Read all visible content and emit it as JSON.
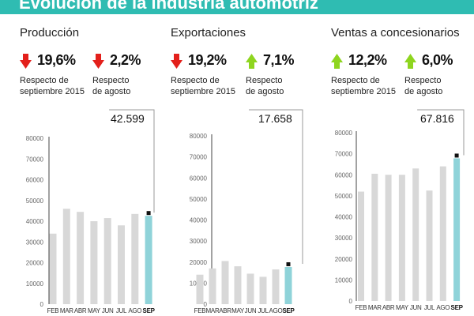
{
  "header": {
    "title": "Evolución de la industria automotriz"
  },
  "colors": {
    "accent": "#2fbcb2",
    "bar": "#d8d8d8",
    "bar_highlight": "#8fd3d9",
    "arrow_down": "#e3201b",
    "arrow_up": "#8ed51f"
  },
  "panels": [
    {
      "title": "Producción",
      "stats": [
        {
          "value": "19,6%",
          "direction": "down",
          "caption_1": "Respecto de",
          "caption_2": "septiembre 2015"
        },
        {
          "value": "2,2%",
          "direction": "down",
          "caption_1": "Respecto",
          "caption_2": "de agosto"
        }
      ],
      "callout": "42.599"
    },
    {
      "title": "Exportaciones",
      "stats": [
        {
          "value": "19,2%",
          "direction": "down",
          "caption_1": "Respecto de",
          "caption_2": "septiembre 2015"
        },
        {
          "value": "7,1%",
          "direction": "up",
          "caption_1": "Respecto",
          "caption_2": "de agosto"
        }
      ],
      "callout": "17.658"
    },
    {
      "title": "Ventas a concesionarios",
      "stats": [
        {
          "value": "12,2%",
          "direction": "up",
          "caption_1": "Respecto de",
          "caption_2": "septiembre 2015"
        },
        {
          "value": "6,0%",
          "direction": "up",
          "caption_1": "Respecto",
          "caption_2": "de agosto"
        }
      ],
      "callout": "67.816"
    }
  ],
  "chart_data": [
    {
      "type": "bar",
      "title": "Producción",
      "categories": [
        "FEB",
        "MAR",
        "ABR",
        "MAY",
        "JUN",
        "JUL",
        "AGO",
        "SEP"
      ],
      "values": [
        34000,
        46000,
        44500,
        40000,
        41500,
        38000,
        43500,
        42599
      ],
      "ylim": [
        0,
        80000
      ],
      "yticks": [
        0,
        10000,
        20000,
        30000,
        40000,
        50000,
        60000,
        70000,
        80000
      ],
      "highlight": "SEP",
      "grid": false
    },
    {
      "type": "bar",
      "title": "Exportaciones",
      "categories": [
        "FEB",
        "MAR",
        "ABR",
        "MAY",
        "JUN",
        "JUL",
        "AGO",
        "SEP"
      ],
      "values": [
        14000,
        17000,
        20500,
        18000,
        14500,
        13000,
        16500,
        17658
      ],
      "ylim": [
        0,
        80000
      ],
      "yticks": [
        0,
        10000,
        20000,
        30000,
        40000,
        50000,
        60000,
        70000,
        80000
      ],
      "highlight": "SEP",
      "grid": false
    },
    {
      "type": "bar",
      "title": "Ventas a concesionarios",
      "categories": [
        "FEB",
        "MAR",
        "ABR",
        "MAY",
        "JUN",
        "JUL",
        "AGO",
        "SEP"
      ],
      "values": [
        52000,
        60500,
        60000,
        60000,
        63000,
        52500,
        64000,
        67816
      ],
      "ylim": [
        0,
        80000
      ],
      "yticks": [
        0,
        10000,
        20000,
        30000,
        40000,
        50000,
        60000,
        70000,
        80000
      ],
      "highlight": "SEP",
      "grid": false
    }
  ]
}
